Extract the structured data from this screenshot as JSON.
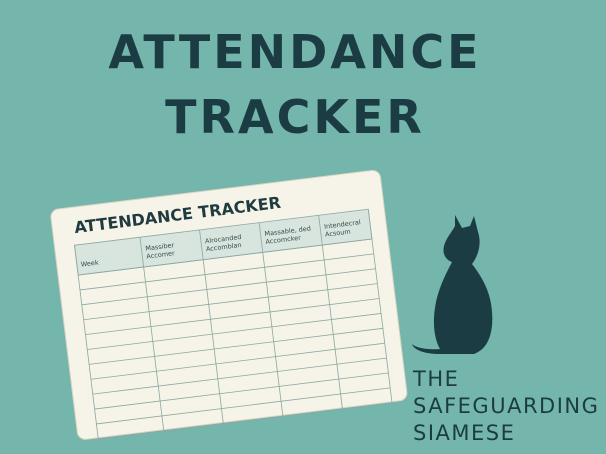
{
  "header": {
    "title_lines": [
      "ATTENDANCE",
      "TRACKER"
    ]
  },
  "card": {
    "title": "ATTENDANCE TRACKER",
    "columns": [
      [
        "Week"
      ],
      [
        "Massiber",
        "Accomer"
      ],
      [
        "Alrocanded",
        "Accomblan"
      ],
      [
        "Massable, ded",
        "Accomcker"
      ],
      [
        "Intendecral",
        "Acsoum"
      ]
    ]
  },
  "brand": {
    "lines": [
      "THE",
      "SAFEGUARDING",
      "SIAMESE"
    ]
  }
}
